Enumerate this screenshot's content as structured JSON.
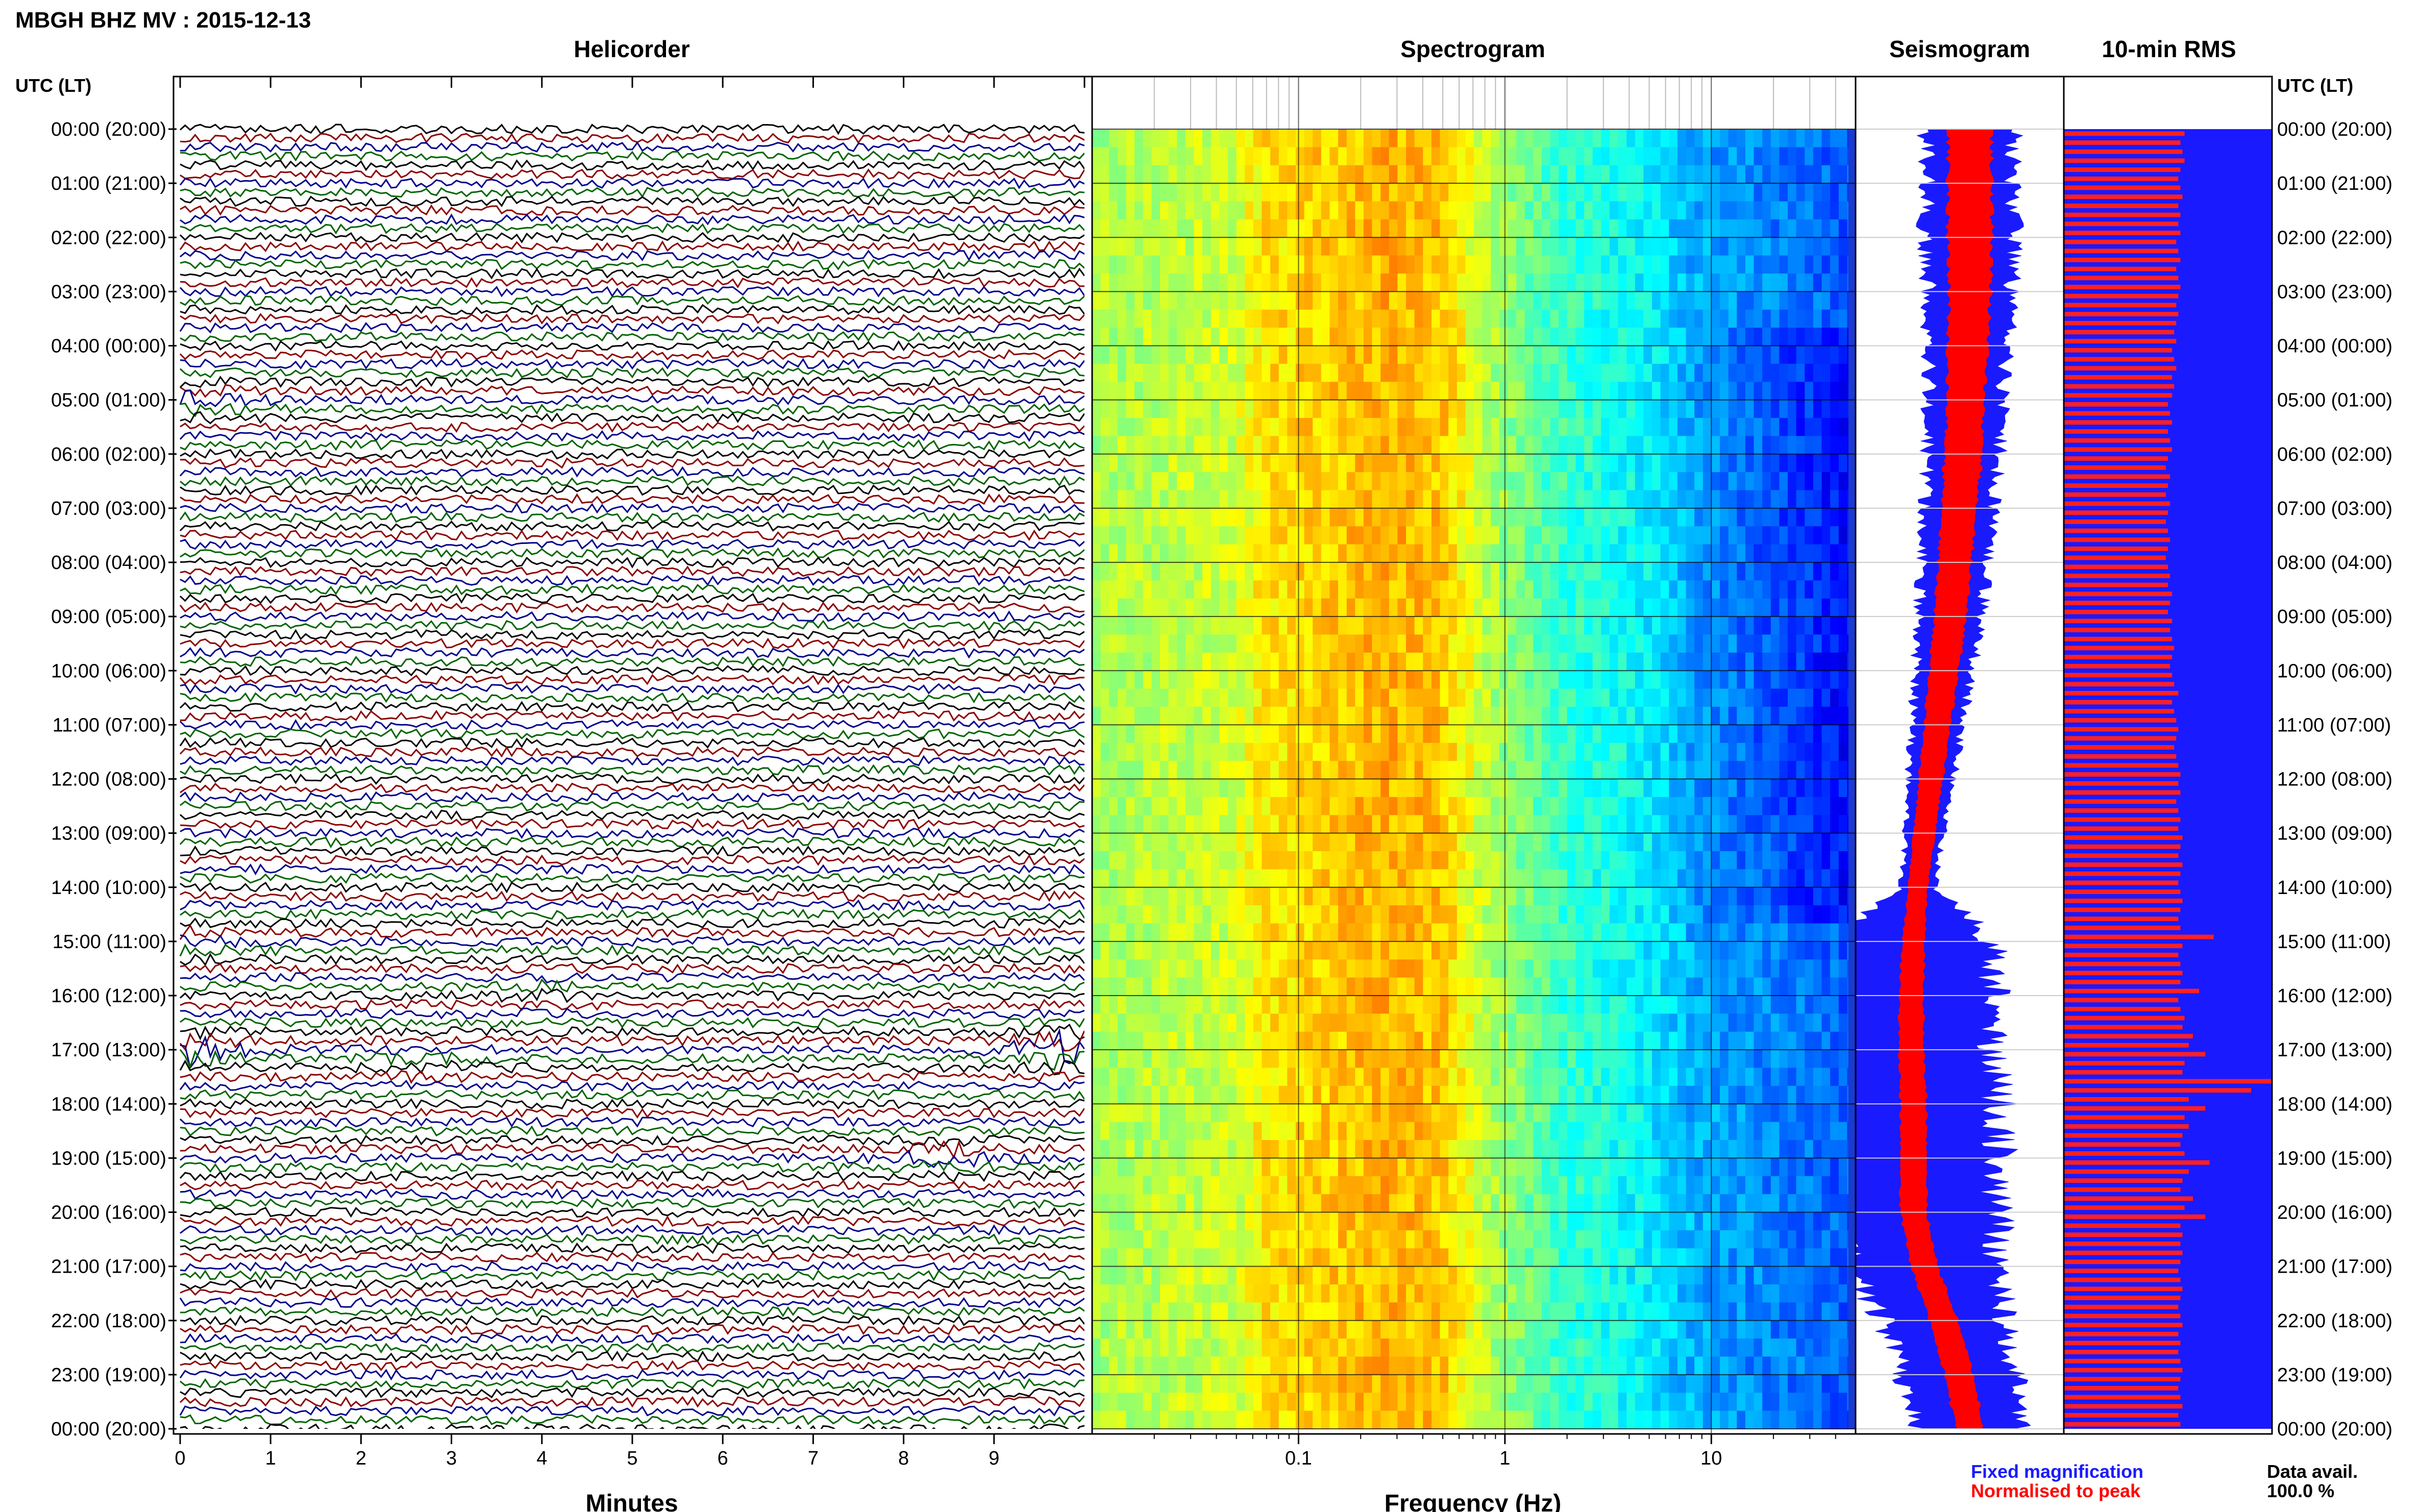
{
  "header": {
    "title": "MBGH BHZ MV : 2015-12-13"
  },
  "panels": {
    "helicorder": "Helicorder",
    "spectrogram": "Spectrogram",
    "seismogram": "Seismogram",
    "rms": "10-min RMS"
  },
  "axes": {
    "left_header": "UTC (LT)",
    "right_header": "UTC (LT)",
    "minutes_label": "Minutes",
    "frequency_label": "Frequency (Hz)",
    "minute_ticks": [
      "0",
      "1",
      "2",
      "3",
      "4",
      "5",
      "6",
      "7",
      "8",
      "9"
    ],
    "frequency_ticks": [
      "0.1",
      "1",
      "10"
    ],
    "time_labels": [
      "00:00 (20:00)",
      "01:00 (21:00)",
      "02:00 (22:00)",
      "03:00 (23:00)",
      "04:00 (00:00)",
      "05:00 (01:00)",
      "06:00 (02:00)",
      "07:00 (03:00)",
      "08:00 (04:00)",
      "09:00 (05:00)",
      "10:00 (06:00)",
      "11:00 (07:00)",
      "12:00 (08:00)",
      "13:00 (09:00)",
      "14:00 (10:00)",
      "15:00 (11:00)",
      "16:00 (12:00)",
      "17:00 (13:00)",
      "18:00 (14:00)",
      "19:00 (15:00)",
      "20:00 (16:00)",
      "21:00 (17:00)",
      "22:00 (18:00)",
      "23:00 (19:00)",
      "00:00 (20:00)"
    ]
  },
  "legend": {
    "fixed": "Fixed magnification",
    "fixed_color": "#1a1aff",
    "normalised": "Normalised to peak",
    "normalised_color": "#ff0000",
    "data_avail_label": "Data avail.",
    "data_avail_value": "100.0 %"
  },
  "chart_data": {
    "type": "heatmap",
    "title": "MBGH BHZ MV : 2015-12-13",
    "helicorder": {
      "trace_colors": [
        "#000000",
        "#8b0000",
        "#00008b",
        "#006400"
      ],
      "minutes_range": [
        0,
        10
      ],
      "events": [
        {
          "hour": 5.0,
          "minute": 0.2,
          "amplitude": 2.5
        },
        {
          "hour": 15.0,
          "minute": 0.0,
          "amplitude": 2.5
        },
        {
          "hour": 16.0,
          "minute": 4.0,
          "amplitude": 2.0
        },
        {
          "hour": 17.0,
          "minute": 0.1,
          "amplitude": 4.0
        },
        {
          "hour": 17.3,
          "minute": 2.7,
          "amplitude": 2.5
        },
        {
          "hour": 17.0,
          "minute": 9.8,
          "amplitude": 5.0
        },
        {
          "hour": 19.0,
          "minute": 8.5,
          "amplitude": 3.0
        }
      ]
    },
    "spectrogram": {
      "x_scale": "log",
      "xlim": [
        0.01,
        50
      ],
      "colormap": [
        "#00007f",
        "#0000ff",
        "#007fff",
        "#00ffff",
        "#7fff7f",
        "#ffff00",
        "#ff7f00",
        "#ff0000"
      ],
      "peak_band_hz": [
        0.15,
        0.5
      ]
    },
    "seismogram": {
      "hours": [
        0,
        1,
        2,
        3,
        4,
        5,
        6,
        7,
        8,
        9,
        10,
        11,
        12,
        13,
        14,
        15,
        16,
        17,
        18,
        19,
        20,
        21,
        22,
        23,
        24
      ],
      "fixed_halfwidth": [
        1.0,
        1.0,
        1.05,
        0.95,
        0.9,
        0.85,
        0.82,
        0.78,
        0.75,
        0.72,
        0.65,
        0.58,
        0.5,
        0.42,
        0.38,
        1.8,
        1.9,
        1.9,
        2.0,
        1.95,
        1.9,
        1.7,
        1.4,
        1.3,
        1.2
      ],
      "normalised_halfwidth": [
        0.5,
        0.5,
        0.5,
        0.48,
        0.45,
        0.43,
        0.42,
        0.4,
        0.38,
        0.36,
        0.33,
        0.3,
        0.27,
        0.24,
        0.22,
        0.25,
        0.28,
        0.28,
        0.3,
        0.3,
        0.3,
        0.3,
        0.32,
        0.32,
        0.32
      ],
      "center_offset": [
        0,
        0,
        0,
        0,
        -0.05,
        -0.1,
        -0.15,
        -0.25,
        -0.35,
        -0.45,
        -0.6,
        -0.75,
        -0.9,
        -1.05,
        -1.2,
        -1.3,
        -1.35,
        -1.35,
        -1.3,
        -1.3,
        -1.3,
        -1.05,
        -0.6,
        -0.25,
        0
      ]
    },
    "rms": {
      "interval_minutes": 10,
      "normalised_length": [
        0.58,
        0.56,
        0.57,
        0.58,
        0.56,
        0.55,
        0.56,
        0.57,
        0.55,
        0.56,
        0.55,
        0.56,
        0.54,
        0.55,
        0.56,
        0.54,
        0.55,
        0.56,
        0.55,
        0.54,
        0.55,
        0.54,
        0.53,
        0.54,
        0.52,
        0.53,
        0.54,
        0.52,
        0.53,
        0.52,
        0.5,
        0.51,
        0.52,
        0.5,
        0.51,
        0.52,
        0.5,
        0.49,
        0.51,
        0.5,
        0.49,
        0.51,
        0.5,
        0.49,
        0.5,
        0.51,
        0.5,
        0.49,
        0.5,
        0.51,
        0.5,
        0.52,
        0.51,
        0.5,
        0.52,
        0.51,
        0.52,
        0.53,
        0.52,
        0.51,
        0.52,
        0.53,
        0.55,
        0.52,
        0.53,
        0.54,
        0.55,
        0.54,
        0.53,
        0.54,
        0.55,
        0.56,
        0.55,
        0.56,
        0.54,
        0.55,
        0.56,
        0.55,
        0.57,
        0.56,
        0.55,
        0.57,
        0.56,
        0.55,
        0.56,
        0.57,
        0.56,
        0.55,
        0.56,
        0.72,
        0.57,
        0.55,
        0.56,
        0.57,
        0.56,
        0.65,
        0.55,
        0.56,
        0.58,
        0.57,
        0.62,
        0.6,
        0.68,
        0.58,
        0.57,
        1.0,
        0.9,
        0.6,
        0.68,
        0.58,
        0.6,
        0.57,
        0.56,
        0.58,
        0.7,
        0.6,
        0.57,
        0.56,
        0.62,
        0.58,
        0.68,
        0.56,
        0.57,
        0.56,
        0.57,
        0.56,
        0.55,
        0.56,
        0.57,
        0.56,
        0.55,
        0.56,
        0.57,
        0.55,
        0.56,
        0.55,
        0.56,
        0.57,
        0.56,
        0.55,
        0.56,
        0.57,
        0.55,
        0.56
      ]
    }
  }
}
